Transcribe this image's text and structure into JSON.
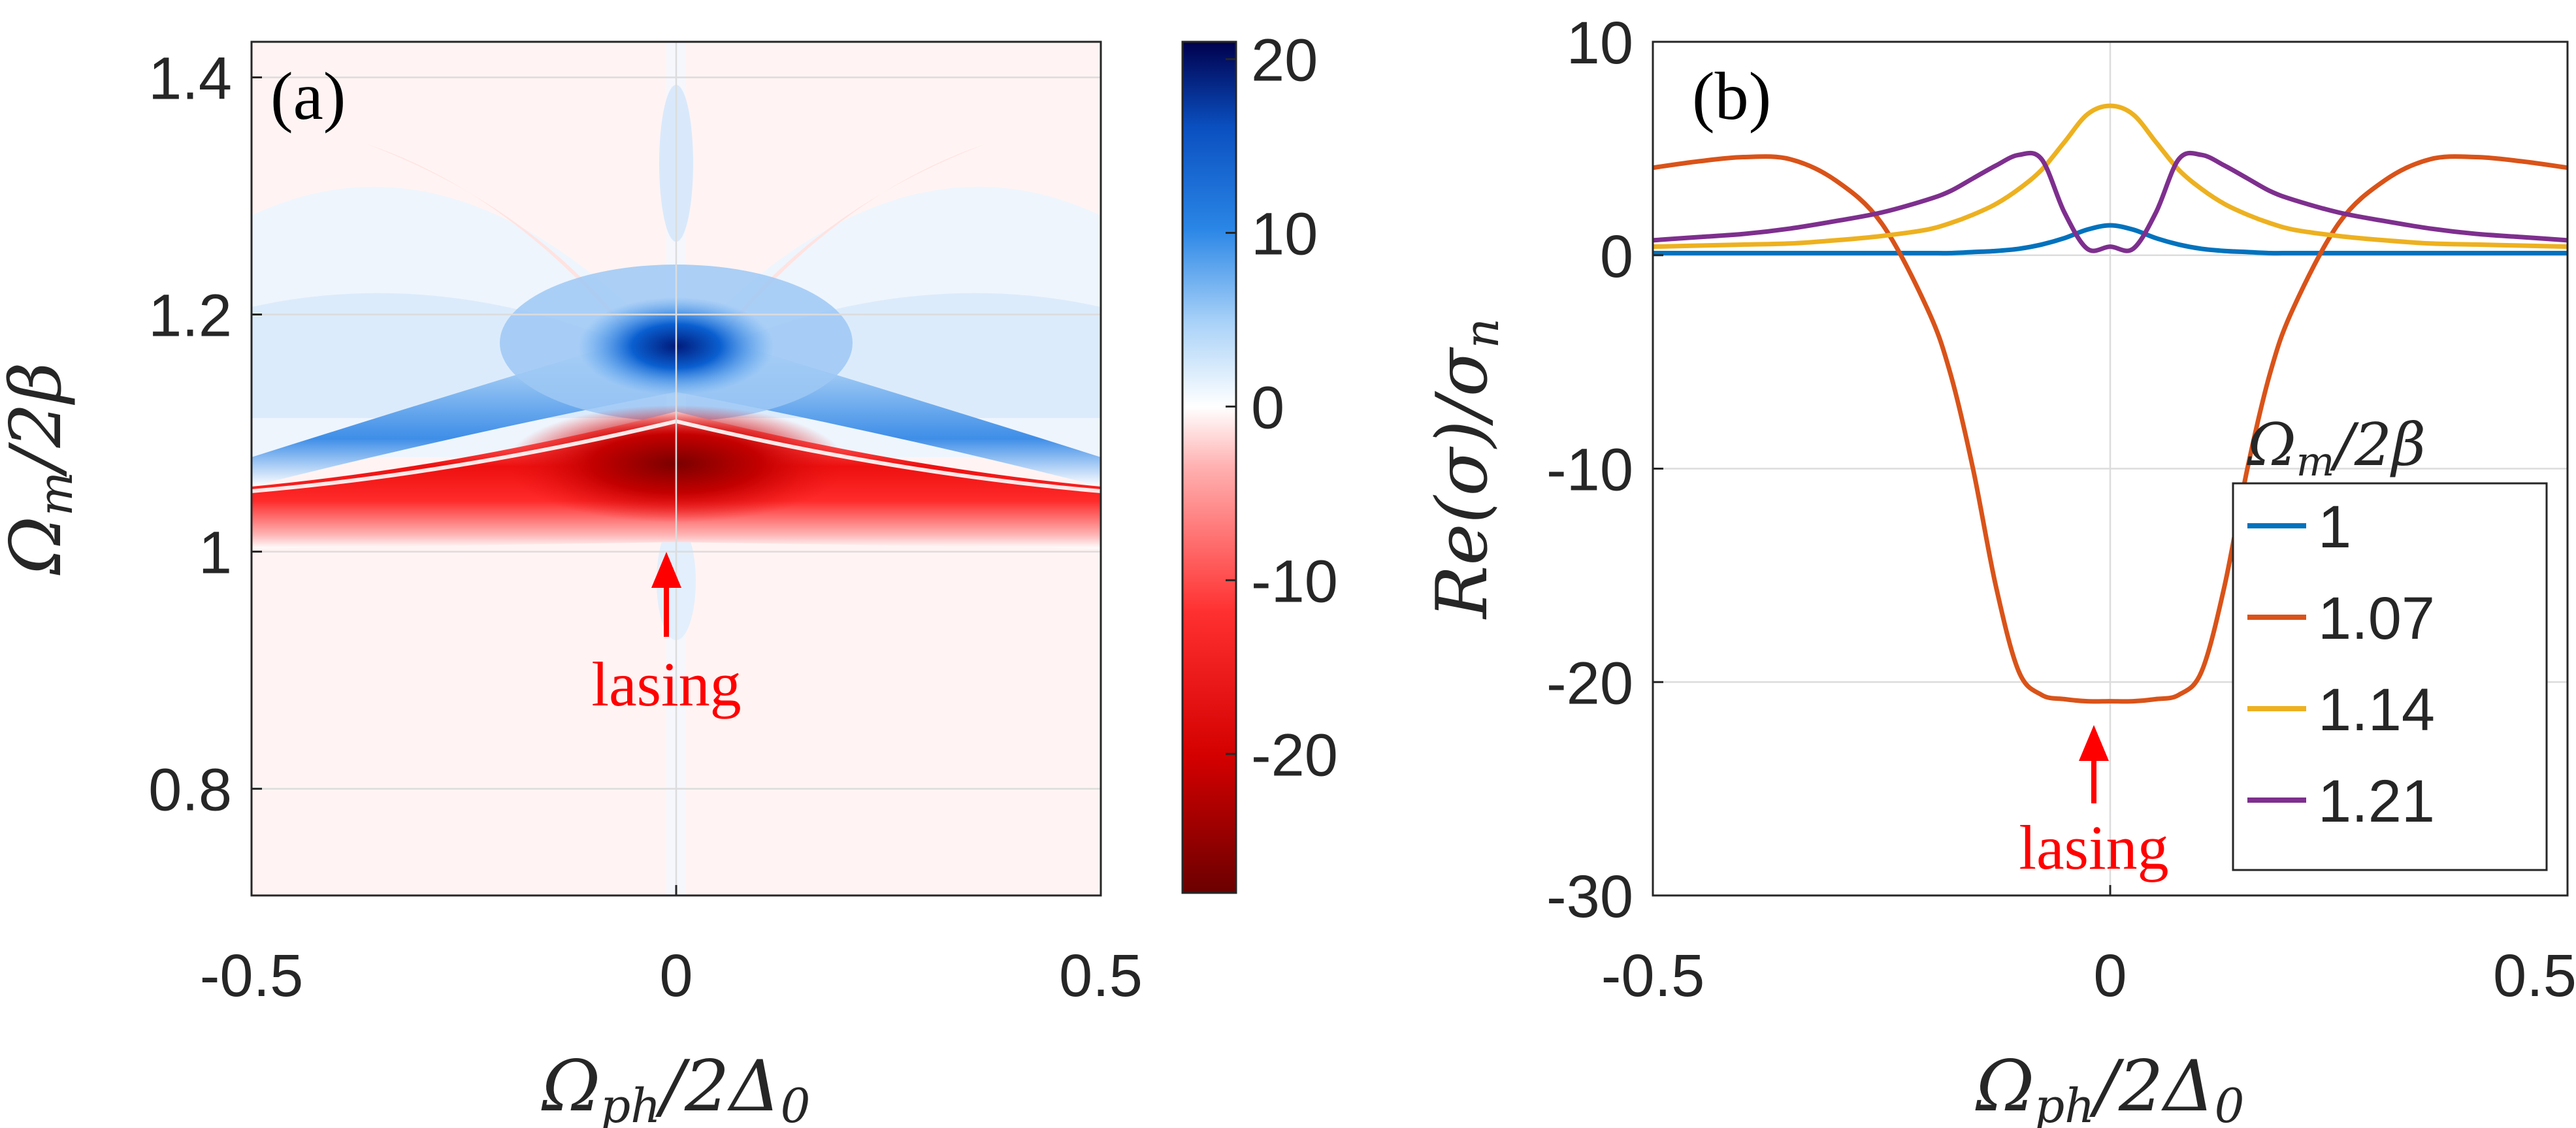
{
  "chart_data": [
    {
      "type": "heatmap",
      "panel_label": "(a)",
      "xlabel": "Ωph/2Δ0",
      "ylabel": "Ωm/2β",
      "xlim": [
        -0.5,
        0.5
      ],
      "ylim": [
        0.71,
        1.43
      ],
      "x_ticks": [
        -0.5,
        0,
        0.5
      ],
      "x_tick_labels": [
        "-0.5",
        "0",
        "0.5"
      ],
      "y_ticks": [
        0.8,
        1.0,
        1.2,
        1.4
      ],
      "y_tick_labels": [
        "0.8",
        "1",
        "1.2",
        "1.4"
      ],
      "grid": true,
      "colorbar": {
        "min": -28,
        "max": 21,
        "ticks": [
          20,
          10,
          0,
          -10,
          -20
        ],
        "tick_labels": [
          "20",
          "10",
          "0",
          "-10",
          "-20"
        ],
        "colormap": [
          "#6b0000",
          "#ff0000",
          "#ffffff",
          "#1a7fe0",
          "#00004d"
        ]
      },
      "features": [
        {
          "region": "negative band",
          "x_range": [
            -0.5,
            0.5
          ],
          "y_center": 1.055,
          "min_value": -27
        },
        {
          "region": "positive band",
          "x_range": [
            -0.5,
            0.5
          ],
          "y_center": 1.12,
          "max_value": 12
        },
        {
          "region": "positive peak",
          "x": 0.0,
          "y": 1.17,
          "max_value": 20
        }
      ],
      "annotation": {
        "text": "lasing",
        "x": 0.0,
        "y": 0.96
      }
    },
    {
      "type": "line",
      "panel_label": "(b)",
      "xlabel": "Ωph/2Δ0",
      "ylabel": "Re(σ)/σn",
      "xlim": [
        -0.5,
        0.5
      ],
      "ylim": [
        -30,
        10
      ],
      "x_ticks": [
        -0.5,
        0,
        0.5
      ],
      "x_tick_labels": [
        "-0.5",
        "0",
        "0.5"
      ],
      "y_ticks": [
        10,
        0,
        -10,
        -20,
        -30
      ],
      "y_tick_labels": [
        "10",
        "0",
        "-10",
        "-20",
        "-30"
      ],
      "grid": true,
      "x": [
        -0.5,
        -0.45,
        -0.4,
        -0.35,
        -0.3,
        -0.25,
        -0.2,
        -0.175,
        -0.15,
        -0.125,
        -0.1,
        -0.075,
        -0.05,
        -0.025,
        0,
        0.025,
        0.05,
        0.075,
        0.1,
        0.125,
        0.15,
        0.175,
        0.2,
        0.25,
        0.3,
        0.35,
        0.4,
        0.45,
        0.5
      ],
      "series": [
        {
          "name": "1",
          "color": "#0072bd",
          "values": [
            0.1,
            0.1,
            0.1,
            0.1,
            0.1,
            0.1,
            0.1,
            0.1,
            0.15,
            0.2,
            0.3,
            0.5,
            0.8,
            1.2,
            1.4,
            1.2,
            0.8,
            0.5,
            0.3,
            0.2,
            0.15,
            0.1,
            0.1,
            0.1,
            0.1,
            0.1,
            0.1,
            0.1,
            0.1
          ]
        },
        {
          "name": "1.07",
          "color": "#d95319",
          "values": [
            4.1,
            4.4,
            4.6,
            4.5,
            3.5,
            1.5,
            -2.5,
            -5.5,
            -10,
            -15.5,
            -19.5,
            -20.6,
            -20.8,
            -20.9,
            -20.9,
            -20.9,
            -20.8,
            -20.6,
            -19.5,
            -15.5,
            -10,
            -5.5,
            -2.5,
            1.5,
            3.5,
            4.5,
            4.6,
            4.4,
            4.1
          ]
        },
        {
          "name": "1.14",
          "color": "#edb120",
          "values": [
            0.4,
            0.45,
            0.5,
            0.55,
            0.7,
            0.9,
            1.2,
            1.5,
            1.9,
            2.4,
            3.1,
            4.0,
            5.3,
            6.6,
            7.0,
            6.6,
            5.3,
            4.0,
            3.1,
            2.4,
            1.9,
            1.5,
            1.2,
            0.9,
            0.7,
            0.55,
            0.5,
            0.45,
            0.4
          ]
        },
        {
          "name": "1.21",
          "color": "#7e2f8e",
          "values": [
            0.7,
            0.85,
            1.0,
            1.25,
            1.6,
            2.0,
            2.6,
            3.0,
            3.6,
            4.2,
            4.7,
            4.5,
            2.0,
            0.3,
            0.4,
            0.3,
            2.0,
            4.5,
            4.7,
            4.2,
            3.6,
            3.0,
            2.6,
            2.0,
            1.6,
            1.25,
            1.0,
            0.85,
            0.7
          ]
        }
      ],
      "legend": {
        "title": "Ωm/2β",
        "placement": "bottom-right"
      },
      "annotation": {
        "text": "lasing",
        "x": 0.0,
        "y": -23
      }
    }
  ]
}
